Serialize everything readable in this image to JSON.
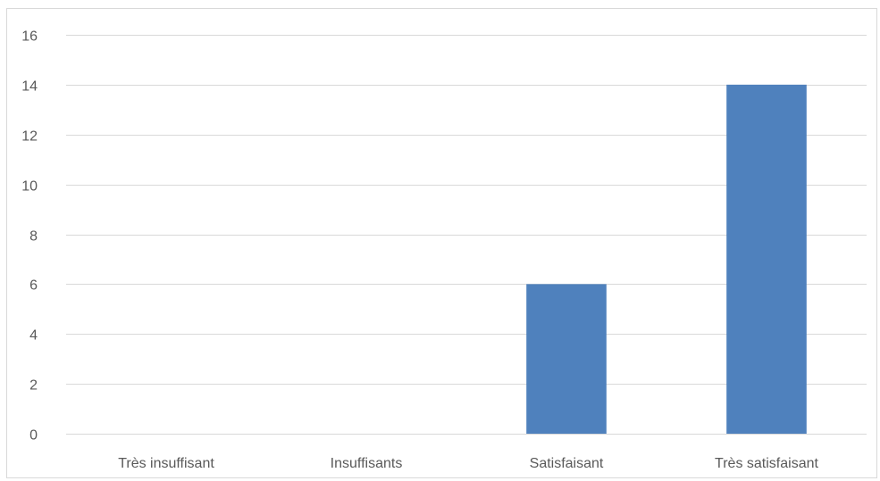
{
  "chart_data": {
    "type": "bar",
    "categories": [
      "Très insuffisant",
      "Insuffisants",
      "Satisfaisant",
      "Très satisfaisant"
    ],
    "values": [
      0,
      0,
      6,
      14
    ],
    "title": "",
    "xlabel": "",
    "ylabel": "",
    "ylim": [
      0,
      16
    ],
    "yticks": [
      0,
      2,
      4,
      6,
      8,
      10,
      12,
      14,
      16
    ],
    "grid": true,
    "legend": "none",
    "bar_color": "#4F81BD",
    "gridline_color": "#D9D9D9",
    "label_color": "#595959"
  }
}
